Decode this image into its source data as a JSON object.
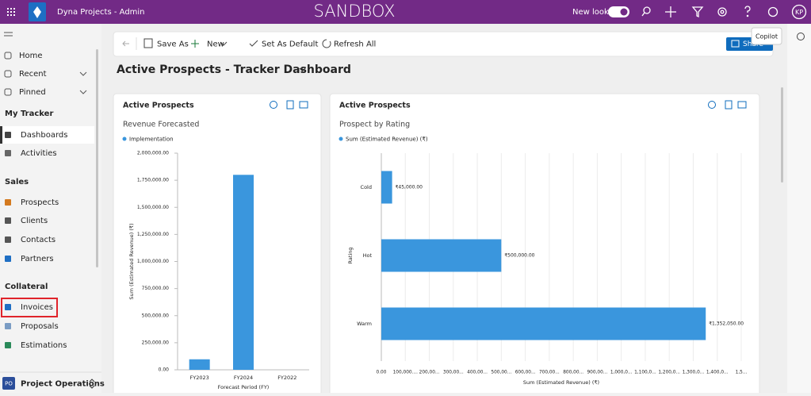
{
  "header": {
    "app_name": "Dyna Projects - Admin",
    "environment": "SANDBOX",
    "new_look": "New look",
    "avatar": "KP"
  },
  "copilot_tooltip": "Copilot",
  "nav": {
    "top": [
      "Home",
      "Recent",
      "Pinned"
    ],
    "sections": [
      {
        "title": "My Tracker",
        "items": [
          "Dashboards",
          "Activities"
        ]
      },
      {
        "title": "Sales",
        "items": [
          "Prospects",
          "Clients",
          "Contacts",
          "Partners"
        ]
      },
      {
        "title": "Collateral",
        "items": [
          "Invoices",
          "Proposals",
          "Estimations"
        ]
      }
    ],
    "area": {
      "badge": "PO",
      "name": "Project Operations"
    }
  },
  "commands": {
    "items": [
      "Save As",
      "New",
      "Set As Default",
      "Refresh All"
    ],
    "share": "Share"
  },
  "page_title": "Active Prospects - Tracker Dashboard",
  "cards": [
    {
      "title": "Active Prospects",
      "chart_data": {
        "type": "bar",
        "title": "Revenue Forecasted",
        "categories": [
          "FY2023",
          "FY2024",
          "FY2022"
        ],
        "series": [
          {
            "name": "Implementation",
            "color": "#3a96dd",
            "values": [
              97050,
              1800000,
              0
            ]
          }
        ],
        "ylim": [
          0,
          2000000
        ],
        "yticks": [
          {
            "value": 0,
            "label": "0.00"
          },
          {
            "value": 250000,
            "label": "250,000.00"
          },
          {
            "value": 500000,
            "label": "500,000.00"
          },
          {
            "value": 750000,
            "label": "750,000.00"
          },
          {
            "value": 1000000,
            "label": "1,000,000.00"
          },
          {
            "value": 1250000,
            "label": "1,250,000.00"
          },
          {
            "value": 1500000,
            "label": "1,500,000.00"
          },
          {
            "value": 1750000,
            "label": "1,750,000.00"
          },
          {
            "value": 2000000,
            "label": "2,000,000.00"
          }
        ],
        "xlabel": "Forecast Period (FY)",
        "ylabel": "Sum (Estimated Revenue) (₹)"
      }
    },
    {
      "title": "Active Prospects",
      "chart_data": {
        "type": "barh",
        "title": "Prospect by Rating",
        "categories": [
          "Cold",
          "Hot",
          "Warm"
        ],
        "series": [
          {
            "name": "Sum (Estimated Revenue) (₹)",
            "color": "#3a96dd",
            "values": [
              45000,
              500000,
              1352050
            ],
            "value_labels": [
              "₹45,000.00",
              "₹500,000.00",
              "₹1,352,050.00"
            ]
          }
        ],
        "xlim": [
          0,
          1500000
        ],
        "xticks": [
          {
            "value": 0,
            "label": "0.00"
          },
          {
            "value": 100000,
            "label": "100,000...."
          },
          {
            "value": 200000,
            "label": "200,00..."
          },
          {
            "value": 300000,
            "label": "300,00..."
          },
          {
            "value": 400000,
            "label": "400,00..."
          },
          {
            "value": 500000,
            "label": "500,00..."
          },
          {
            "value": 600000,
            "label": "600,00..."
          },
          {
            "value": 700000,
            "label": "700,00..."
          },
          {
            "value": 800000,
            "label": "800,00..."
          },
          {
            "value": 900000,
            "label": "900,00..."
          },
          {
            "value": 1000000,
            "label": "1,000,0..."
          },
          {
            "value": 1100000,
            "label": "1,100,0..."
          },
          {
            "value": 1200000,
            "label": "1,200,0..."
          },
          {
            "value": 1300000,
            "label": "1,300,0..."
          },
          {
            "value": 1400000,
            "label": "1,400,0..."
          },
          {
            "value": 1500000,
            "label": "1,5..."
          }
        ],
        "grid": true,
        "xlabel": "Sum (Estimated Revenue) (₹)",
        "ylabel": "Rating"
      }
    }
  ]
}
